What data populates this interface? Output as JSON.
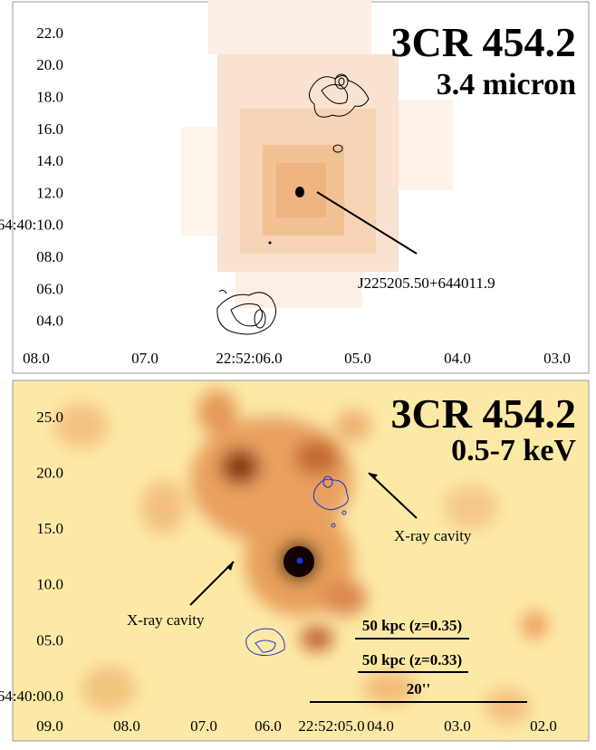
{
  "panels": [
    {
      "title": "3CR 454.2",
      "band": "3.4 micron",
      "yticks": [
        "22.0",
        "20.0",
        "18.0",
        "16.0",
        "14.0",
        "12.0",
        "64:40:10.0",
        "08.0",
        "06.0",
        "04.0"
      ],
      "xticks": [
        "08.0",
        "07.0",
        "22:52:06.0",
        "05.0",
        "04.0",
        "03.0"
      ],
      "annotations": [
        "J225205.50+644011.9"
      ]
    },
    {
      "title": "3CR 454.2",
      "band": "0.5-7 keV",
      "yticks": [
        "25.0",
        "20.0",
        "15.0",
        "10.0",
        "05.0",
        "64:40:00.0"
      ],
      "xticks": [
        "09.0",
        "08.0",
        "07.0",
        "06.0",
        "22:52:05.0",
        "04.0",
        "03.0",
        "02.0"
      ],
      "annotations": [
        "X-ray cavity",
        "X-ray cavity"
      ],
      "scale_bars": [
        "50 kpc (z=0.35)",
        "50 kpc (z=0.33)",
        "20''"
      ]
    }
  ]
}
